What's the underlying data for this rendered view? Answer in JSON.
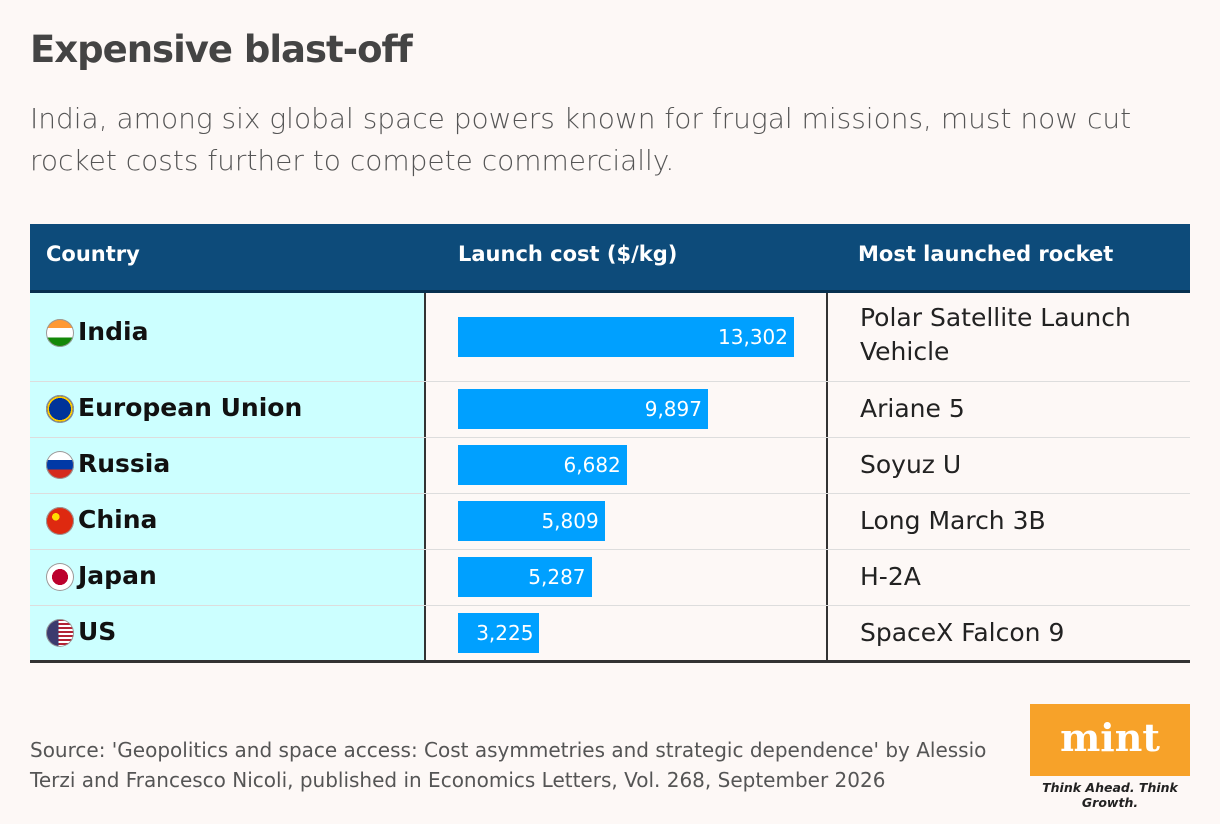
{
  "chart_data": {
    "type": "bar",
    "title": "Expensive blast-off",
    "subtitle": "India, among six global space powers known for frugal missions, must now cut rocket costs further to compete commercially.",
    "columns": [
      "Country",
      "Launch cost ($/kg)",
      "Most launched rocket"
    ],
    "categories": [
      "India",
      "European Union",
      "Russia",
      "China",
      "Japan",
      "US"
    ],
    "values": [
      13302,
      9897,
      6682,
      5809,
      5287,
      3225
    ],
    "value_labels": [
      "13,302",
      "9,897",
      "6,682",
      "5,809",
      "5,287",
      "3,225"
    ],
    "rockets": [
      "Polar Satellite Launch Vehicle",
      "Ariane 5",
      "Soyuz U",
      "Long March 3B",
      "H-2A",
      "SpaceX Falcon 9"
    ],
    "color": "#00a0ff"
  },
  "source": "Source: 'Geopolitics and space access: Cost asymmetries and strategic dependence' by Alessio Terzi and Francesco Nicoli, published in Economics Letters, Vol. 268, September 2026",
  "logo": {
    "name": "mint",
    "tagline": "Think Ahead. Think Growth."
  }
}
